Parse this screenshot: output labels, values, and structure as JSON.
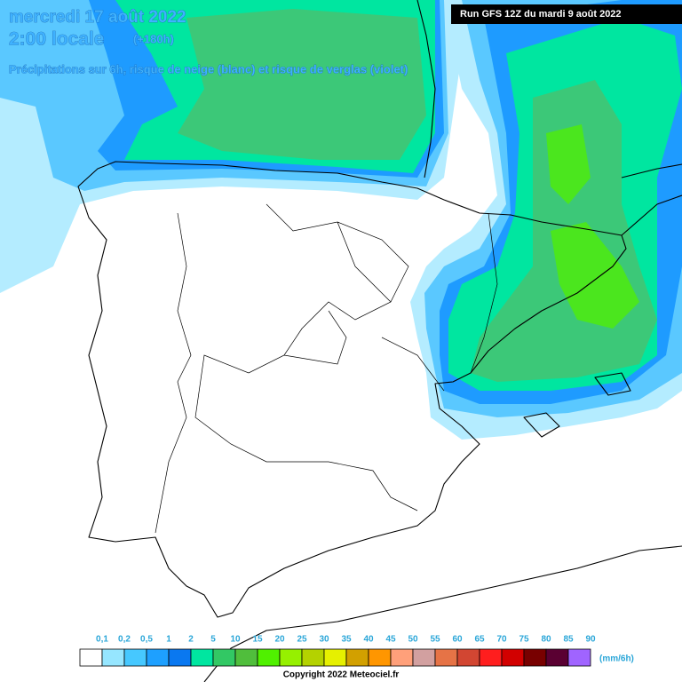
{
  "header": {
    "date": "mercredi 17 août 2022",
    "time": "2:00 locale",
    "lead": "(+180h)",
    "run": "Run GFS 12Z du mardi 9 août 2022",
    "subtitle": "Précipitations sur 6h, risque de neige (blanc) et risque de verglas (violet)"
  },
  "legend": {
    "labels": [
      "0,1",
      "0,2",
      "0,5",
      "1",
      "2",
      "5",
      "10",
      "15",
      "20",
      "25",
      "30",
      "35",
      "40",
      "45",
      "50",
      "55",
      "60",
      "65",
      "70",
      "75",
      "80",
      "85",
      "90"
    ],
    "colors": [
      "#ffffff",
      "#96e6ff",
      "#46c8ff",
      "#1ea0ff",
      "#0a78f0",
      "#00e6a0",
      "#32c864",
      "#50be3c",
      "#50f000",
      "#96f000",
      "#b4d200",
      "#e6f000",
      "#d2a000",
      "#ff9600",
      "#ffa07a",
      "#d2a0a0",
      "#e67346",
      "#d24632",
      "#ff1e1e",
      "#d20000",
      "#780000",
      "#5a0032",
      "#a064ff"
    ],
    "unit": "(mm/6h)"
  },
  "footer": {
    "copyright": "Copyright 2022 Meteociel.fr"
  }
}
